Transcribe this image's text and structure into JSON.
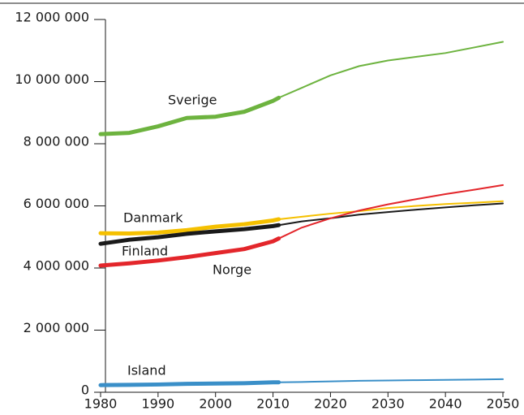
{
  "chart_data": {
    "type": "line",
    "x": [
      1980,
      1985,
      1990,
      1995,
      2000,
      2005,
      2010,
      2011,
      2015,
      2020,
      2025,
      2030,
      2035,
      2040,
      2045,
      2050
    ],
    "projection_from": 2011,
    "series": [
      {
        "name": "Sverige",
        "color": "#6db33f",
        "values": [
          8310000,
          8350000,
          8560000,
          8830000,
          8870000,
          9030000,
          9380000,
          9480000,
          9800000,
          10200000,
          10500000,
          10680000,
          10800000,
          10920000,
          11100000,
          11280000
        ]
      },
      {
        "name": "Danmark",
        "color": "#f5c000",
        "values": [
          5120000,
          5110000,
          5140000,
          5220000,
          5330000,
          5410000,
          5530000,
          5570000,
          5650000,
          5750000,
          5830000,
          5930000,
          6000000,
          6060000,
          6100000,
          6150000
        ]
      },
      {
        "name": "Finland",
        "color": "#1a1a1a",
        "values": [
          4780000,
          4910000,
          4990000,
          5100000,
          5180000,
          5250000,
          5350000,
          5380000,
          5500000,
          5600000,
          5720000,
          5800000,
          5880000,
          5950000,
          6020000,
          6080000
        ]
      },
      {
        "name": "Norge",
        "color": "#e3262b",
        "values": [
          4080000,
          4150000,
          4240000,
          4350000,
          4480000,
          4610000,
          4860000,
          4950000,
          5300000,
          5600000,
          5850000,
          6050000,
          6220000,
          6380000,
          6520000,
          6670000
        ]
      },
      {
        "name": "Island",
        "color": "#3a8fc8",
        "values": [
          230000,
          240000,
          250000,
          270000,
          280000,
          290000,
          320000,
          320000,
          330000,
          350000,
          370000,
          380000,
          390000,
          400000,
          410000,
          420000
        ]
      }
    ],
    "xlim": [
      1980,
      2050
    ],
    "xticks": [
      1980,
      1990,
      2000,
      2010,
      2020,
      2030,
      2040,
      2050
    ],
    "ylim": [
      0,
      12000000
    ],
    "yticks": [
      0,
      {
        "value": 2000000,
        "label": "2 000 000"
      },
      {
        "value": 4000000,
        "label": "4 000 000"
      },
      {
        "value": 6000000,
        "label": "6 000 000"
      },
      {
        "value": 8000000,
        "label": "8 000 000"
      },
      {
        "value": 10000000,
        "label": "10 000 000"
      },
      {
        "value": 12000000,
        "label": "12 000 000"
      }
    ]
  }
}
